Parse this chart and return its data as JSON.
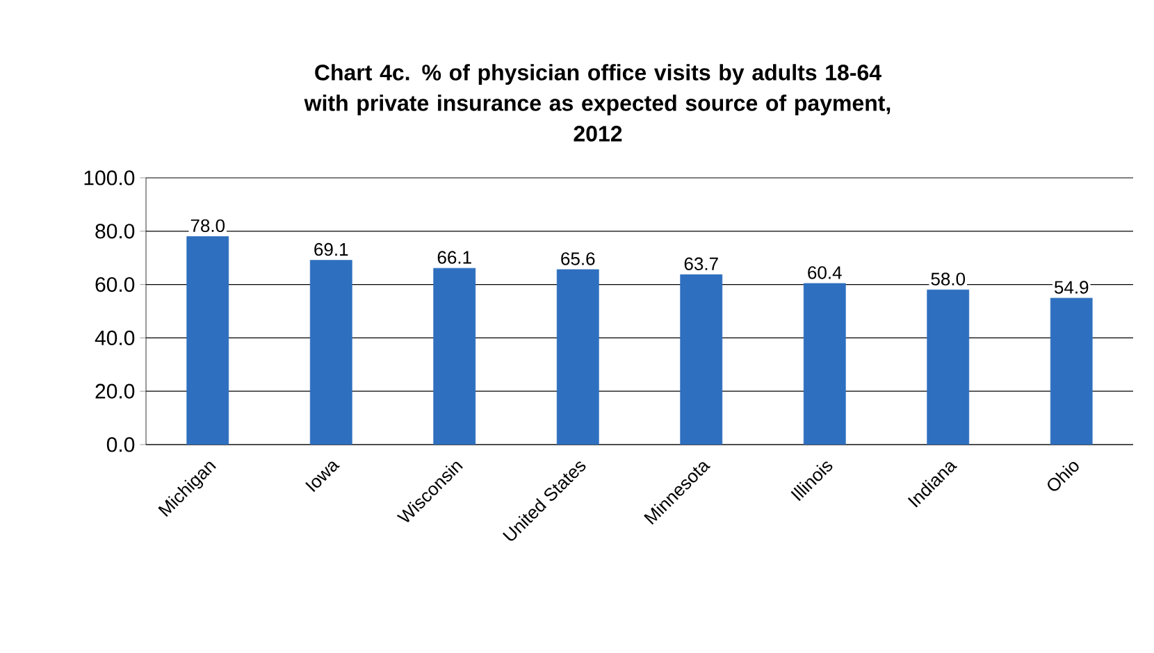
{
  "chart_data": {
    "type": "bar",
    "title": "Chart 4c. % of physician office visits by adults 18-64\nwith private insurance as expected source of payment,\n2012",
    "categories": [
      "Michigan",
      "Iowa",
      "Wisconsin",
      "United States",
      "Minnesota",
      "Illinois",
      "Indiana",
      "Ohio"
    ],
    "values": [
      78.0,
      69.1,
      66.1,
      65.6,
      63.7,
      60.4,
      58.0,
      54.9
    ],
    "value_labels": [
      "78.0",
      "69.1",
      "66.1",
      "65.6",
      "63.7",
      "60.4",
      "58.0",
      "54.9"
    ],
    "color": "#2e6fbf",
    "ylim": [
      0,
      100
    ],
    "yticks": [
      {
        "value": 0,
        "label": "0.0"
      },
      {
        "value": 20,
        "label": "20.0"
      },
      {
        "value": 40,
        "label": "40.0"
      },
      {
        "value": 60,
        "label": "60.0"
      },
      {
        "value": 80,
        "label": "80.0"
      },
      {
        "value": 100,
        "label": "100.0"
      }
    ],
    "grid": "y"
  }
}
